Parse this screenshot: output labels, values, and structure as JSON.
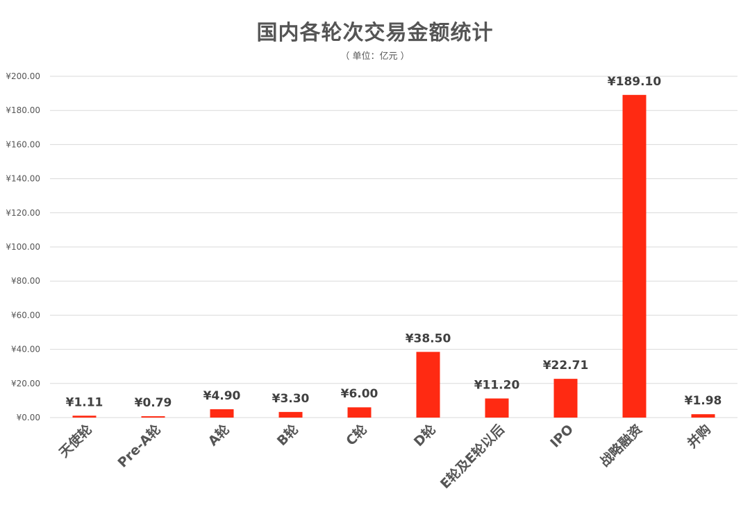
{
  "chart_data": {
    "type": "bar",
    "title": "国内各轮次交易金额统计",
    "subtitle": "（ 单位：亿元 ）",
    "categories": [
      "天使轮",
      "Pre-A轮",
      "A轮",
      "B轮",
      "C轮",
      "D轮",
      "E轮及E轮以后",
      "IPO",
      "战略融资",
      "并购"
    ],
    "values": [
      1.11,
      0.79,
      4.9,
      3.3,
      6.0,
      38.5,
      11.2,
      22.71,
      189.1,
      1.98
    ],
    "data_labels": [
      "¥1.11",
      "¥0.79",
      "¥4.90",
      "¥3.30",
      "¥6.00",
      "¥38.50",
      "¥11.20",
      "¥22.71",
      "¥189.10",
      "¥1.98"
    ],
    "yticks": [
      0,
      20,
      40,
      60,
      80,
      100,
      120,
      140,
      160,
      180,
      200
    ],
    "ytick_labels": [
      "¥0.00",
      "¥20.00",
      "¥40.00",
      "¥60.00",
      "¥80.00",
      "¥100.00",
      "¥120.00",
      "¥140.00",
      "¥160.00",
      "¥180.00",
      "¥200.00"
    ],
    "ylim": [
      0,
      200
    ],
    "xlabel": "",
    "ylabel": "",
    "grid": true,
    "legend": "none",
    "bar_color": "#ff2a12",
    "grid_color": "#d9d9d9",
    "text_color": "#555555"
  }
}
